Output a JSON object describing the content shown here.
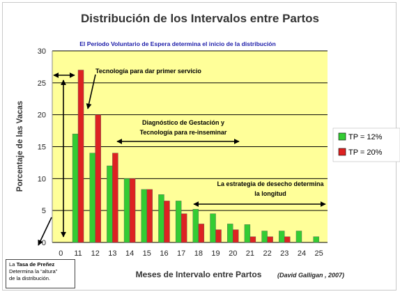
{
  "chart_data": {
    "type": "bar",
    "title": "Distribución de los Intervalos entre Partos",
    "subtitle": "El Período Voluntario de Espera determina el inicio de la distribución",
    "xlabel": "Meses de Intervalo entre Partos",
    "xlabel_note": "(David Galligan , 2007)",
    "ylabel": "Porcentaje de las Vacas",
    "ylim": [
      0,
      30
    ],
    "yticks": [
      "0",
      "5",
      "10",
      "15",
      "20",
      "25",
      "30"
    ],
    "categories": [
      "0",
      "11",
      "12",
      "13",
      "14",
      "15",
      "16",
      "17",
      "18",
      "19",
      "20",
      "21",
      "22",
      "23",
      "24",
      "25"
    ],
    "series": [
      {
        "name": "TP = 12%",
        "color": "#33cc33",
        "values": [
          null,
          17,
          14,
          12,
          10,
          8.3,
          7.5,
          6.5,
          5.2,
          4.5,
          2.9,
          2.8,
          1.8,
          1.8,
          1.8,
          0.9
        ]
      },
      {
        "name": "TP = 20%",
        "color": "#dd2222",
        "values": [
          null,
          27,
          20,
          14,
          10,
          8.3,
          6.5,
          4.5,
          2.9,
          2.0,
          2.0,
          0.9,
          0.9,
          0.9,
          0,
          0
        ]
      }
    ],
    "legend_position": "right",
    "grid": true,
    "colors": {
      "plot_bg": "#ffff99",
      "grid": "#000000",
      "annotation_blue": "#1a1aa8"
    },
    "annotations": [
      "Tecnología para dar primer servicio",
      "Diagnóstico de Gestación y",
      "Tecnología para re-inseminar",
      "La estrategia de desecho determina",
      "la longitud"
    ],
    "note": {
      "line1_pre": "La ",
      "line1_bold": "Tasa de Preñez",
      "line2": "Determina la “altura”",
      "line3": "de la distribución."
    }
  }
}
